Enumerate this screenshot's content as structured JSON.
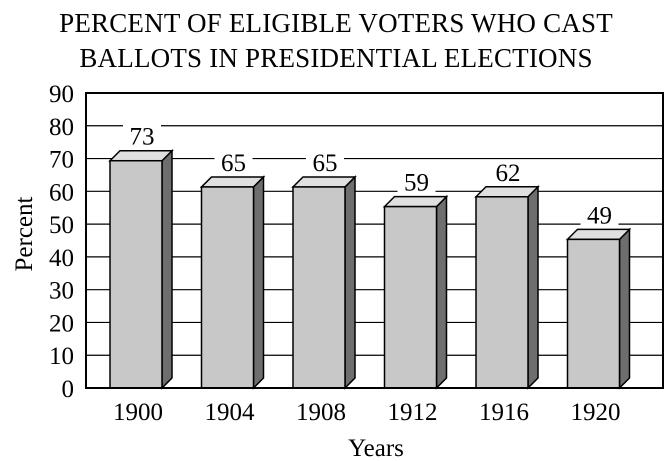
{
  "chart_data": {
    "type": "bar",
    "title_lines": [
      "PERCENT OF ELIGIBLE VOTERS WHO CAST",
      "BALLOTS IN PRESIDENTIAL ELECTIONS"
    ],
    "xlabel": "Years",
    "ylabel": "Percent",
    "categories": [
      "1900",
      "1904",
      "1908",
      "1912",
      "1916",
      "1920"
    ],
    "values": [
      73,
      65,
      65,
      59,
      62,
      49
    ],
    "ylim": [
      0,
      90
    ],
    "yticks": [
      0,
      10,
      20,
      30,
      40,
      50,
      60,
      70,
      80,
      90
    ],
    "grid": true,
    "style": "3d",
    "colors": {
      "bar_front": "#c8c8c8",
      "bar_side": "#6e6e6e",
      "bar_top": "#e0e0e0",
      "grid": "#000000"
    }
  }
}
